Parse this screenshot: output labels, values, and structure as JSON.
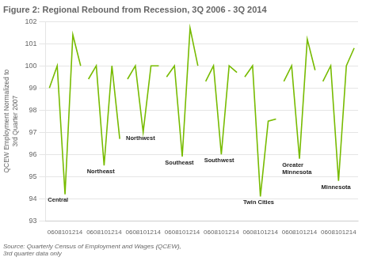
{
  "chart_data": {
    "type": "line",
    "title": "Figure 2: Regional Rebound from Recession, 3Q 2006 - 3Q 2014",
    "ylabel": "QCEW Employment Normalized to\n3rd Quarter 2007",
    "source": "Source: Quarterly Census of Employment and Wages (QCEW),\n3rd quarter data only",
    "color": "#77bb00",
    "marker": "none",
    "grid": "y",
    "ylim": [
      93,
      102
    ],
    "yticks": [
      93,
      94,
      95,
      96,
      97,
      98,
      99,
      100,
      101,
      102
    ],
    "categories": [
      null,
      null,
      "0608101214",
      null,
      null,
      null,
      null,
      "0608101214",
      null,
      null,
      null,
      null,
      "0608101214",
      null,
      null,
      null,
      null,
      "0608101214",
      null,
      null,
      null,
      null,
      "0608101214",
      null,
      null,
      null,
      null,
      "0608101214",
      null,
      null,
      null,
      null,
      "0608101214",
      null,
      null,
      null,
      null,
      "0608101214",
      null,
      null
    ],
    "series": [
      {
        "name": "Central",
        "values": [
          99.0,
          100.0,
          94.2,
          101.4,
          100.0,
          null,
          null,
          null,
          null,
          null,
          null,
          null,
          null,
          null,
          null,
          null,
          null,
          null,
          null,
          null,
          null,
          null,
          null,
          null,
          null,
          null,
          null,
          null,
          null,
          null,
          null,
          null,
          null,
          null,
          null,
          null,
          null,
          null,
          null,
          null
        ]
      },
      {
        "name": "Northeast",
        "values": [
          null,
          null,
          null,
          null,
          null,
          99.4,
          100.0,
          95.5,
          100.0,
          96.7,
          null,
          null,
          null,
          null,
          null,
          null,
          null,
          null,
          null,
          null,
          null,
          null,
          null,
          null,
          null,
          null,
          null,
          null,
          null,
          null,
          null,
          null,
          null,
          null,
          null,
          null,
          null,
          null,
          null,
          null
        ]
      },
      {
        "name": "Northwest",
        "values": [
          null,
          null,
          null,
          null,
          null,
          null,
          null,
          null,
          null,
          null,
          99.4,
          100.0,
          97.0,
          100.0,
          100.0,
          null,
          null,
          null,
          null,
          null,
          null,
          null,
          null,
          null,
          null,
          null,
          null,
          null,
          null,
          null,
          null,
          null,
          null,
          null,
          null,
          null,
          null,
          null,
          null,
          null
        ]
      },
      {
        "name": "Southeast",
        "values": [
          null,
          null,
          null,
          null,
          null,
          null,
          null,
          null,
          null,
          null,
          null,
          null,
          null,
          null,
          null,
          99.5,
          100.0,
          95.9,
          101.7,
          100.0,
          null,
          null,
          null,
          null,
          null,
          null,
          null,
          null,
          null,
          null,
          null,
          null,
          null,
          null,
          null,
          null,
          null,
          null,
          null,
          null
        ]
      },
      {
        "name": "Southwest",
        "values": [
          null,
          null,
          null,
          null,
          null,
          null,
          null,
          null,
          null,
          null,
          null,
          null,
          null,
          null,
          null,
          null,
          null,
          null,
          null,
          null,
          99.3,
          100.0,
          96.0,
          100.0,
          99.7,
          null,
          null,
          null,
          null,
          null,
          null,
          null,
          null,
          null,
          null,
          null,
          null,
          null,
          null,
          null
        ]
      },
      {
        "name": "Twin Cities",
        "values": [
          null,
          null,
          null,
          null,
          null,
          null,
          null,
          null,
          null,
          null,
          null,
          null,
          null,
          null,
          null,
          null,
          null,
          null,
          null,
          null,
          null,
          null,
          null,
          null,
          null,
          99.5,
          100.0,
          94.1,
          97.5,
          97.6,
          null,
          null,
          null,
          null,
          null,
          null,
          null,
          null,
          null,
          null
        ]
      },
      {
        "name": "Greater\nMinnesota",
        "values": [
          null,
          null,
          null,
          null,
          null,
          null,
          null,
          null,
          null,
          null,
          null,
          null,
          null,
          null,
          null,
          null,
          null,
          null,
          null,
          null,
          null,
          null,
          null,
          null,
          null,
          null,
          null,
          null,
          null,
          null,
          99.3,
          100.0,
          95.8,
          101.2,
          99.8,
          null,
          null,
          null,
          null,
          null
        ]
      },
      {
        "name": "Minnesota",
        "values": [
          null,
          null,
          null,
          null,
          null,
          null,
          null,
          null,
          null,
          null,
          null,
          null,
          null,
          null,
          null,
          null,
          null,
          null,
          null,
          null,
          null,
          null,
          null,
          null,
          null,
          null,
          null,
          null,
          null,
          null,
          null,
          null,
          null,
          null,
          null,
          99.3,
          100.0,
          94.8,
          100.0,
          100.8
        ]
      }
    ]
  }
}
